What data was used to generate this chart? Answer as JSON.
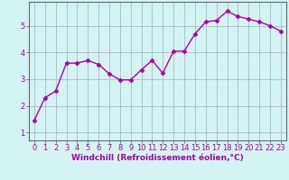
{
  "x": [
    0,
    1,
    2,
    3,
    4,
    5,
    6,
    7,
    8,
    9,
    10,
    11,
    12,
    13,
    14,
    15,
    16,
    17,
    18,
    19,
    20,
    21,
    22,
    23
  ],
  "y": [
    1.45,
    2.3,
    2.55,
    3.6,
    3.6,
    3.7,
    3.55,
    3.2,
    2.97,
    2.97,
    3.35,
    3.7,
    3.22,
    4.05,
    4.05,
    4.7,
    5.15,
    5.2,
    5.55,
    5.35,
    5.25,
    5.15,
    5.0,
    4.8
  ],
  "line_color": "#AA00AA",
  "marker": "D",
  "marker_size": 2.5,
  "xlabel": "Windchill (Refroidissement éolien,°C)",
  "ylim": [
    0.7,
    5.9
  ],
  "xlim": [
    -0.5,
    23.5
  ],
  "yticks": [
    1,
    2,
    3,
    4,
    5
  ],
  "xticks": [
    0,
    1,
    2,
    3,
    4,
    5,
    6,
    7,
    8,
    9,
    10,
    11,
    12,
    13,
    14,
    15,
    16,
    17,
    18,
    19,
    20,
    21,
    22,
    23
  ],
  "bg_color": "#d4f4f4",
  "grid_color": "#aaaacc",
  "xlabel_fontsize": 6.5,
  "tick_fontsize": 6.0,
  "xlabel_color": "#AA00AA",
  "tick_color": "#AA00AA",
  "line_width": 1.0
}
